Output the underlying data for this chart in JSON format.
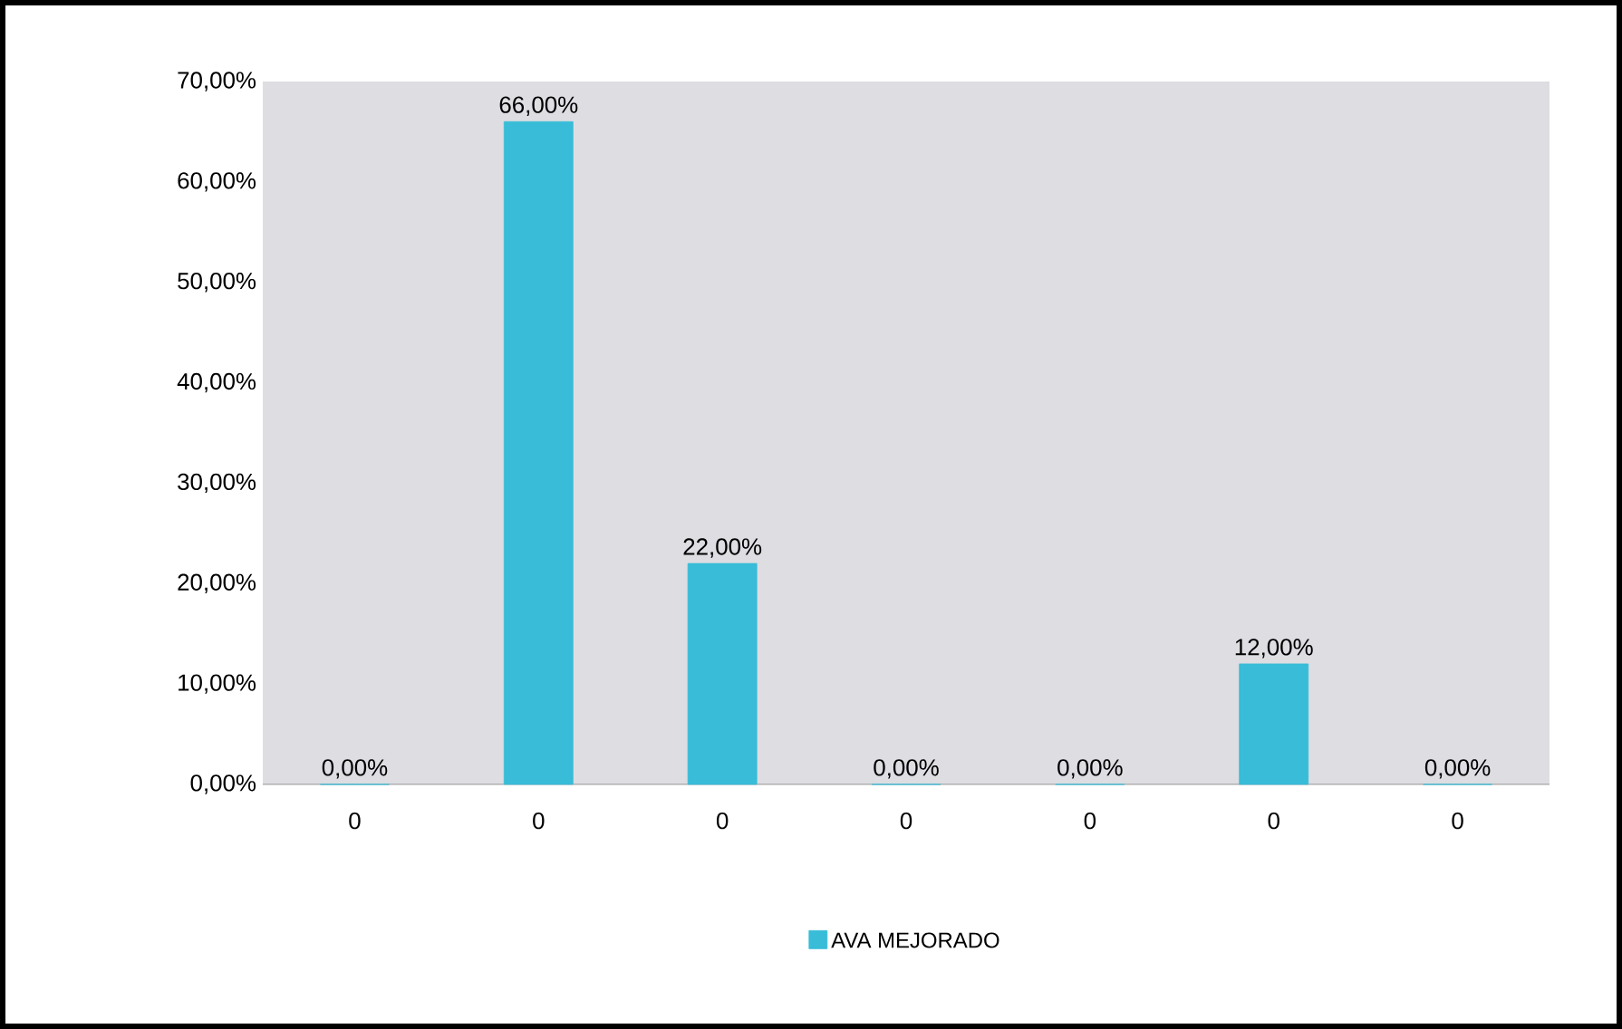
{
  "chart_data": {
    "type": "bar",
    "categories": [
      "0",
      "0",
      "0",
      "0",
      "0",
      "0",
      "0"
    ],
    "series": [
      {
        "name": "AVA MEJORADO",
        "color": "#38bcd8",
        "values": [
          0,
          66,
          22,
          0,
          0,
          12,
          0
        ],
        "value_labels": [
          "0,00%",
          "66,00%",
          "22,00%",
          "0,00%",
          "0,00%",
          "12,00%",
          "0,00%"
        ]
      }
    ],
    "ylim": [
      0,
      70
    ],
    "yticks": [
      {
        "value": 0,
        "label": "0,00%"
      },
      {
        "value": 10,
        "label": "10,00%"
      },
      {
        "value": 20,
        "label": "20,00%"
      },
      {
        "value": 30,
        "label": "30,00%"
      },
      {
        "value": 40,
        "label": "40,00%"
      },
      {
        "value": 50,
        "label": "50,00%"
      },
      {
        "value": 60,
        "label": "60,00%"
      },
      {
        "value": 70,
        "label": "70,00%"
      }
    ],
    "legend": "bottom"
  }
}
